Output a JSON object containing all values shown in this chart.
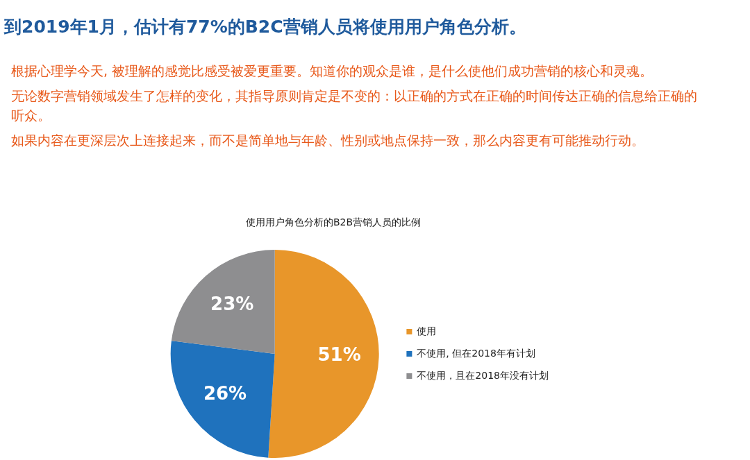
{
  "chart_data": {
    "type": "pie",
    "title": "到2019年1月，估计有77%的B2C营销人员将使用用户角色分析。",
    "subtitle": "使用用户角色分析的B2B营销人员的比例",
    "annotations": [
      "根据心理学今天, 被理解的感觉比感受被爱更重要。知道你的观众是谁，是什么使他们成功营销的核心和灵魂。",
      "无论数字营销领域发生了怎样的变化，其指导原则肯定是不变的：以正确的方式在正确的时间传达正确的信息给正确的听众。",
      "如果内容在更深层次上连接起来，而不是简单地与年龄、性别或地点保持一致，那么内容更有可能推动行动。"
    ],
    "categories": [
      "使用",
      "不使用, 但在2018年有计划",
      "不使用，且在2018年没有计划"
    ],
    "values": [
      51,
      26,
      23
    ],
    "colors": [
      "#e8962a",
      "#1f72bd",
      "#8e8e90"
    ],
    "value_labels": [
      "51%",
      "26%",
      "23%"
    ],
    "legend": "right"
  }
}
